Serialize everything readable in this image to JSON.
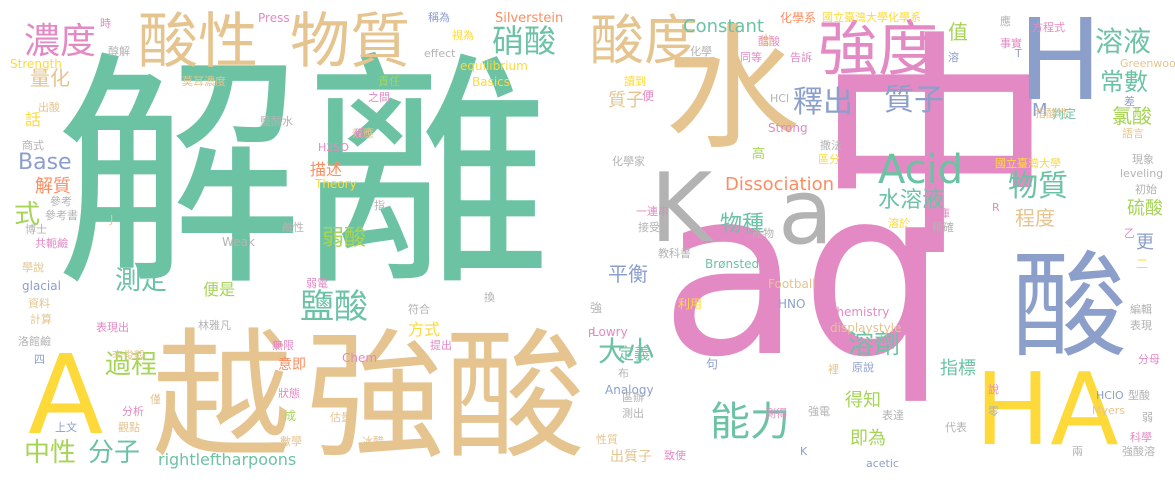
{
  "palette": {
    "green": "#6cc3a3",
    "tan": "#e5c48f",
    "pink": "#e38ac4",
    "slate": "#8c9fcb",
    "yellow": "#fed93a",
    "gray": "#b3b3b3",
    "lime": "#a5d457",
    "orange": "#fb8d62"
  },
  "words": [
    {
      "t": "解離",
      "c": "green"
    },
    {
      "t": "中",
      "c": "pink"
    },
    {
      "t": "aq",
      "c": "pink"
    },
    {
      "t": "水",
      "c": "tan"
    },
    {
      "t": "強酸",
      "c": "tan"
    },
    {
      "t": "越",
      "c": "tan"
    },
    {
      "t": "A",
      "c": "yellow"
    },
    {
      "t": "H",
      "c": "slate"
    },
    {
      "t": "酸",
      "c": "slate"
    },
    {
      "t": "HA",
      "c": "yellow"
    },
    {
      "t": "K",
      "c": "gray"
    },
    {
      "t": "a",
      "c": "gray"
    },
    {
      "t": "酸性",
      "c": "tan"
    },
    {
      "t": "物質",
      "c": "tan"
    },
    {
      "t": "酸度",
      "c": "tan"
    },
    {
      "t": "強度",
      "c": "pink"
    },
    {
      "t": "濃度",
      "c": "pink"
    },
    {
      "t": "硝酸",
      "c": "green"
    },
    {
      "t": "Acid",
      "c": "green"
    },
    {
      "t": "物質",
      "c": "green"
    },
    {
      "t": "水溶液",
      "c": "green"
    },
    {
      "t": "釋出",
      "c": "slate"
    },
    {
      "t": "質子",
      "c": "slate"
    },
    {
      "t": "溶液",
      "c": "green"
    },
    {
      "t": "常數",
      "c": "green"
    },
    {
      "t": "能力",
      "c": "green"
    },
    {
      "t": "大小",
      "c": "green"
    },
    {
      "t": "鹽酸",
      "c": "green"
    },
    {
      "t": "溶劑",
      "c": "green"
    },
    {
      "t": "Constant",
      "c": "green"
    },
    {
      "t": "Dissociation",
      "c": "orange"
    },
    {
      "t": "Base",
      "c": "slate"
    },
    {
      "t": "中性",
      "c": "lime"
    },
    {
      "t": "分子",
      "c": "green"
    },
    {
      "t": "過程",
      "c": "lime"
    },
    {
      "t": "測定",
      "c": "green"
    },
    {
      "t": "弱酸",
      "c": "lime"
    },
    {
      "t": "物種",
      "c": "green"
    },
    {
      "t": "平衡",
      "c": "slate"
    },
    {
      "t": "程度",
      "c": "tan"
    },
    {
      "t": "氯酸",
      "c": "lime"
    },
    {
      "t": "硫酸",
      "c": "lime"
    },
    {
      "t": "更",
      "c": "slate"
    },
    {
      "t": "值",
      "c": "lime"
    },
    {
      "t": "量化",
      "c": "tan"
    },
    {
      "t": "解質",
      "c": "orange"
    },
    {
      "t": "式",
      "c": "lime"
    },
    {
      "t": "即為",
      "c": "lime"
    },
    {
      "t": "得知",
      "c": "lime"
    },
    {
      "t": "指標",
      "c": "green"
    },
    {
      "t": "定義",
      "c": "green"
    },
    {
      "t": "rightleftharpoons",
      "c": "green"
    },
    {
      "t": "描述",
      "c": "orange"
    },
    {
      "t": "意即",
      "c": "orange"
    },
    {
      "t": "質子",
      "c": "tan"
    },
    {
      "t": "方式",
      "c": "yellow"
    },
    {
      "t": "出質子",
      "c": "tan"
    },
    {
      "t": "話",
      "c": "yellow"
    },
    {
      "t": "便是",
      "c": "lime"
    },
    {
      "t": "M",
      "c": "slate"
    },
    {
      "t": "判定",
      "c": "green"
    },
    {
      "t": "Strength",
      "c": "yellow"
    },
    {
      "t": "化學系",
      "c": "orange"
    },
    {
      "t": "國立臺灣大學化學系",
      "c": "yellow"
    },
    {
      "t": "國立臺灣大學",
      "c": "yellow"
    },
    {
      "t": "Silverstein",
      "c": "orange"
    },
    {
      "t": "Press",
      "c": "pink"
    },
    {
      "t": "equilibrium",
      "c": "yellow"
    },
    {
      "t": "Basics",
      "c": "yellow"
    },
    {
      "t": "Theory",
      "c": "yellow"
    },
    {
      "t": "Strong",
      "c": "pink"
    },
    {
      "t": "Weak",
      "c": "gray"
    },
    {
      "t": "Chemistry",
      "c": "pink"
    },
    {
      "t": "displaystyle",
      "c": "tan"
    },
    {
      "t": "Brønsted",
      "c": "green"
    },
    {
      "t": "Lowry",
      "c": "pink"
    },
    {
      "t": "Football",
      "c": "tan"
    },
    {
      "t": "Analogy",
      "c": "slate"
    },
    {
      "t": "Chem",
      "c": "pink"
    },
    {
      "t": "HNO",
      "c": "slate"
    },
    {
      "t": "HClO",
      "c": "slate"
    },
    {
      "t": "Myers",
      "c": "tan"
    },
    {
      "t": "acetic",
      "c": "slate"
    },
    {
      "t": "leveling",
      "c": "gray"
    },
    {
      "t": "glacial",
      "c": "slate"
    },
    {
      "t": "HCl",
      "c": "gray"
    },
    {
      "t": "H2SO",
      "c": "pink"
    },
    {
      "t": "effect",
      "c": "gray"
    },
    {
      "t": "Greenwood",
      "c": "tan"
    },
    {
      "t": "P",
      "c": "pink"
    },
    {
      "t": "J",
      "c": "tan"
    },
    {
      "t": "R",
      "c": "pink"
    },
    {
      "t": "T",
      "c": "slate"
    },
    {
      "t": "化學家",
      "c": "gray"
    },
    {
      "t": "林雅凡",
      "c": "gray"
    },
    {
      "t": "李俊毅",
      "c": "tan"
    },
    {
      "t": "莫耳濃度",
      "c": "tan"
    },
    {
      "t": "鹽酸水",
      "c": "gray"
    },
    {
      "t": "共軛鹼",
      "c": "pink"
    },
    {
      "t": "一連串",
      "c": "pink"
    },
    {
      "t": "教科書",
      "c": "gray"
    },
    {
      "t": "參考書",
      "c": "gray"
    },
    {
      "t": "商式",
      "c": "gray"
    },
    {
      "t": "學說",
      "c": "tan"
    },
    {
      "t": "資料",
      "c": "tan"
    },
    {
      "t": "計算",
      "c": "tan"
    },
    {
      "t": "分析",
      "c": "pink"
    },
    {
      "t": "觀點",
      "c": "tan"
    },
    {
      "t": "上文",
      "c": "slate"
    },
    {
      "t": "數學",
      "c": "tan"
    },
    {
      "t": "冰醋",
      "c": "tan"
    },
    {
      "t": "性質",
      "c": "tan"
    },
    {
      "t": "致使",
      "c": "pink"
    },
    {
      "t": "強電",
      "c": "gray"
    },
    {
      "t": "表達",
      "c": "gray"
    },
    {
      "t": "科學",
      "c": "pink"
    },
    {
      "t": "強酸溶",
      "c": "gray"
    },
    {
      "t": "型酸",
      "c": "gray"
    },
    {
      "t": "分母",
      "c": "pink"
    },
    {
      "t": "表現",
      "c": "gray"
    },
    {
      "t": "編輯",
      "c": "gray"
    },
    {
      "t": "現象",
      "c": "gray"
    },
    {
      "t": "初始",
      "c": "gray"
    },
    {
      "t": "語言",
      "c": "tan"
    },
    {
      "t": "指酸性",
      "c": "tan"
    },
    {
      "t": "方程式",
      "c": "pink"
    },
    {
      "t": "事實",
      "c": "pink"
    },
    {
      "t": "告訴",
      "c": "pink"
    },
    {
      "t": "醋酸",
      "c": "pink"
    },
    {
      "t": "同等",
      "c": "pink"
    },
    {
      "t": "讀到",
      "c": "yellow"
    },
    {
      "t": "稱為",
      "c": "slate"
    },
    {
      "t": "視為",
      "c": "yellow"
    },
    {
      "t": "責任",
      "c": "lime"
    },
    {
      "t": "之間",
      "c": "pink"
    },
    {
      "t": "效應",
      "c": "tan"
    },
    {
      "t": "出酸",
      "c": "tan"
    },
    {
      "t": "醇解",
      "c": "gray"
    },
    {
      "t": "時",
      "c": "pink"
    },
    {
      "t": "參考",
      "c": "gray"
    },
    {
      "t": "博士",
      "c": "gray"
    },
    {
      "t": "產物",
      "c": "gray"
    },
    {
      "t": "接受",
      "c": "gray"
    },
    {
      "t": "溶於",
      "c": "yellow"
    },
    {
      "t": "平庫",
      "c": "pink"
    },
    {
      "t": "精確",
      "c": "gray"
    },
    {
      "t": "區分",
      "c": "yellow"
    },
    {
      "t": "撒法",
      "c": "gray"
    },
    {
      "t": "原說",
      "c": "slate"
    },
    {
      "t": "估量",
      "c": "tan"
    },
    {
      "t": "狀態",
      "c": "pink"
    },
    {
      "t": "無限",
      "c": "pink"
    },
    {
      "t": "提出",
      "c": "pink"
    },
    {
      "t": "測出",
      "c": "gray"
    },
    {
      "t": "區辦",
      "c": "gray"
    },
    {
      "t": "測得",
      "c": "pink"
    },
    {
      "t": "鹼性",
      "c": "gray"
    },
    {
      "t": "弱電",
      "c": "pink"
    },
    {
      "t": "符合",
      "c": "gray"
    },
    {
      "t": "表現出",
      "c": "pink"
    },
    {
      "t": "洛館鹼",
      "c": "gray"
    },
    {
      "t": "利用",
      "c": "yellow"
    },
    {
      "t": "高",
      "c": "lime"
    },
    {
      "t": "代表",
      "c": "gray"
    },
    {
      "t": "零",
      "c": "gray"
    },
    {
      "t": "兩",
      "c": "gray"
    },
    {
      "t": "弱",
      "c": "gray"
    },
    {
      "t": "說",
      "c": "pink"
    },
    {
      "t": "裡",
      "c": "tan"
    },
    {
      "t": "K",
      "c": "slate"
    },
    {
      "t": "句",
      "c": "slate"
    },
    {
      "t": "布",
      "c": "gray"
    },
    {
      "t": "換",
      "c": "gray"
    },
    {
      "t": "強",
      "c": "gray"
    },
    {
      "t": "低",
      "c": "pink"
    },
    {
      "t": "指",
      "c": "gray"
    },
    {
      "t": "成",
      "c": "lime"
    },
    {
      "t": "僅",
      "c": "tan"
    },
    {
      "t": "四",
      "c": "slate"
    },
    {
      "t": "二",
      "c": "yellow"
    },
    {
      "t": "乙",
      "c": "pink"
    },
    {
      "t": "差",
      "c": "slate"
    },
    {
      "t": "溶",
      "c": "slate"
    },
    {
      "t": "應",
      "c": "gray"
    },
    {
      "t": "便",
      "c": "pink"
    },
    {
      "t": "出",
      "c": "tan"
    },
    {
      "t": "化學",
      "c": "gray"
    }
  ]
}
